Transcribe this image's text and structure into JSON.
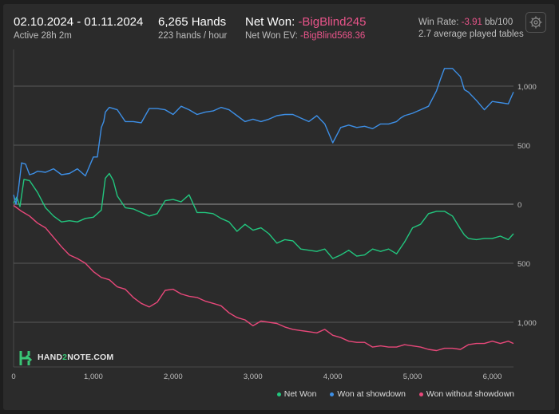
{
  "header": {
    "date_range": "02.10.2024 - 01.11.2024",
    "active": "Active 28h 2m",
    "hands": "6,265 Hands",
    "hands_per_hour": "223 hands / hour",
    "net_won_label": "Net Won:",
    "net_won_value": "-BigBlind245",
    "net_won_ev_label": "Net Won  EV:",
    "net_won_ev_value": "-BigBlind568.36",
    "win_rate_label": "Win Rate:",
    "win_rate_value": "-3.91",
    "win_rate_unit": "bb/100",
    "avg_tables": "2.7 average played tables"
  },
  "toolbar": {
    "settings_icon": "gear-icon"
  },
  "logo": {
    "pre": "HAND",
    "mid": "2",
    "post": "NOTE.COM"
  },
  "colors": {
    "net_won": "#22c67e",
    "won_at_showdown": "#3d8fe6",
    "won_without_showdown": "#e8487a",
    "negative_text": "#e9548a",
    "grid": "#5a5a5a",
    "zero_line": "#9a9a9a"
  },
  "chart_data": {
    "type": "line",
    "xlim": [
      0,
      6265
    ],
    "ylim": [
      -1250,
      1200
    ],
    "x_ticks": [
      0,
      1000,
      2000,
      3000,
      4000,
      5000,
      6000
    ],
    "x_tick_labels": [
      "0",
      "1,000",
      "2,000",
      "3,000",
      "4,000",
      "5,000",
      "6,000"
    ],
    "y_ticks": [
      1000,
      500,
      0,
      -500,
      -1000
    ],
    "y_tick_labels": [
      "1,000",
      "500",
      "0",
      "500",
      "1,000"
    ],
    "grid": true,
    "legend_position": "bottom-right",
    "series": [
      {
        "name": "Net Won",
        "color_key": "net_won",
        "x": [
          0,
          40,
          80,
          130,
          200,
          300,
          400,
          500,
          600,
          700,
          800,
          900,
          1000,
          1100,
          1150,
          1200,
          1250,
          1300,
          1400,
          1500,
          1600,
          1700,
          1800,
          1900,
          2000,
          2100,
          2200,
          2300,
          2400,
          2500,
          2600,
          2700,
          2800,
          2900,
          3000,
          3100,
          3200,
          3300,
          3400,
          3500,
          3600,
          3700,
          3800,
          3900,
          4000,
          4100,
          4200,
          4300,
          4400,
          4500,
          4600,
          4700,
          4800,
          4900,
          5000,
          5100,
          5200,
          5300,
          5400,
          5500,
          5600,
          5650,
          5700,
          5800,
          5900,
          6000,
          6100,
          6200,
          6265
        ],
        "y": [
          10,
          60,
          -20,
          210,
          200,
          100,
          -30,
          -100,
          -150,
          -140,
          -150,
          -120,
          -110,
          -50,
          220,
          260,
          200,
          70,
          -30,
          -40,
          -70,
          -100,
          -80,
          30,
          40,
          20,
          80,
          -70,
          -70,
          -80,
          -120,
          -150,
          -230,
          -170,
          -220,
          -200,
          -250,
          -330,
          -300,
          -310,
          -380,
          -390,
          -400,
          -380,
          -460,
          -430,
          -390,
          -440,
          -430,
          -380,
          -400,
          -380,
          -420,
          -320,
          -200,
          -170,
          -80,
          -60,
          -60,
          -100,
          -210,
          -260,
          -290,
          -300,
          -290,
          -290,
          -270,
          -300,
          -250
        ]
      },
      {
        "name": "Won at showdown",
        "color_key": "won_at_showdown",
        "x": [
          0,
          30,
          60,
          100,
          150,
          200,
          250,
          300,
          400,
          500,
          600,
          700,
          800,
          900,
          1000,
          1050,
          1100,
          1130,
          1150,
          1200,
          1300,
          1400,
          1500,
          1600,
          1700,
          1800,
          1900,
          2000,
          2100,
          2200,
          2300,
          2400,
          2500,
          2600,
          2700,
          2800,
          2900,
          3000,
          3100,
          3200,
          3300,
          3400,
          3500,
          3600,
          3700,
          3800,
          3900,
          4000,
          4100,
          4200,
          4300,
          4400,
          4500,
          4600,
          4700,
          4800,
          4850,
          4900,
          5000,
          5100,
          5200,
          5300,
          5350,
          5400,
          5500,
          5600,
          5650,
          5700,
          5800,
          5900,
          6000,
          6100,
          6200,
          6265
        ],
        "y": [
          80,
          0,
          120,
          350,
          340,
          250,
          260,
          280,
          270,
          300,
          250,
          260,
          300,
          240,
          400,
          400,
          650,
          700,
          780,
          820,
          800,
          700,
          700,
          690,
          810,
          810,
          800,
          760,
          830,
          800,
          760,
          780,
          790,
          820,
          800,
          750,
          700,
          720,
          700,
          720,
          750,
          760,
          760,
          730,
          700,
          750,
          680,
          520,
          650,
          670,
          650,
          660,
          640,
          680,
          680,
          700,
          730,
          750,
          770,
          800,
          830,
          960,
          1060,
          1150,
          1150,
          1080,
          970,
          950,
          880,
          800,
          870,
          860,
          850,
          950
        ]
      },
      {
        "name": "Won without showdown",
        "color_key": "won_without_showdown",
        "x": [
          0,
          100,
          200,
          300,
          400,
          500,
          600,
          700,
          800,
          900,
          1000,
          1100,
          1200,
          1300,
          1400,
          1500,
          1600,
          1700,
          1800,
          1900,
          2000,
          2100,
          2200,
          2300,
          2400,
          2500,
          2600,
          2700,
          2800,
          2900,
          3000,
          3100,
          3200,
          3300,
          3400,
          3500,
          3600,
          3700,
          3800,
          3900,
          4000,
          4100,
          4200,
          4300,
          4400,
          4500,
          4600,
          4700,
          4800,
          4900,
          5000,
          5100,
          5200,
          5300,
          5400,
          5500,
          5600,
          5700,
          5800,
          5900,
          6000,
          6100,
          6200,
          6265
        ],
        "y": [
          -10,
          -60,
          -100,
          -160,
          -200,
          -280,
          -360,
          -430,
          -460,
          -500,
          -570,
          -620,
          -640,
          -700,
          -720,
          -790,
          -840,
          -870,
          -830,
          -730,
          -720,
          -760,
          -780,
          -790,
          -820,
          -840,
          -860,
          -920,
          -960,
          -980,
          -1030,
          -990,
          -1000,
          -1010,
          -1040,
          -1060,
          -1070,
          -1080,
          -1090,
          -1060,
          -1110,
          -1130,
          -1160,
          -1170,
          -1170,
          -1210,
          -1200,
          -1210,
          -1210,
          -1190,
          -1200,
          -1210,
          -1230,
          -1240,
          -1220,
          -1220,
          -1230,
          -1190,
          -1180,
          -1180,
          -1160,
          -1180,
          -1160,
          -1180
        ]
      }
    ]
  }
}
